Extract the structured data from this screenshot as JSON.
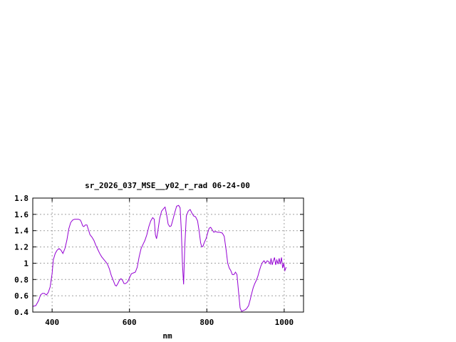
{
  "chart_data": {
    "type": "line",
    "title": "sr_2026_037_MSE__y02_r_rad 06-24-00",
    "xlabel": "nm",
    "ylabel": "",
    "xlim": [
      350,
      1050
    ],
    "ylim": [
      0.4,
      1.8
    ],
    "xticks": [
      400,
      600,
      800,
      1000
    ],
    "yticks": [
      0.4,
      0.6,
      0.8,
      1,
      1.2,
      1.4,
      1.6,
      1.8
    ],
    "xtick_labels": [
      "400",
      "600",
      "800",
      "1000"
    ],
    "ytick_labels": [
      "0.4",
      "0.6",
      "0.8",
      "1",
      "1.2",
      "1.4",
      "1.6",
      "1.8"
    ],
    "grid": true,
    "legend": "none",
    "series_color": "#9400d3",
    "series": [
      {
        "points": [
          [
            350,
            0.47
          ],
          [
            358,
            0.48
          ],
          [
            365,
            0.54
          ],
          [
            370,
            0.61
          ],
          [
            375,
            0.63
          ],
          [
            380,
            0.63
          ],
          [
            385,
            0.61
          ],
          [
            390,
            0.64
          ],
          [
            395,
            0.71
          ],
          [
            400,
            0.87
          ],
          [
            403,
            1.04
          ],
          [
            408,
            1.12
          ],
          [
            413,
            1.16
          ],
          [
            418,
            1.18
          ],
          [
            423,
            1.16
          ],
          [
            428,
            1.12
          ],
          [
            433,
            1.18
          ],
          [
            438,
            1.28
          ],
          [
            443,
            1.42
          ],
          [
            448,
            1.5
          ],
          [
            453,
            1.53
          ],
          [
            458,
            1.54
          ],
          [
            463,
            1.54
          ],
          [
            468,
            1.54
          ],
          [
            473,
            1.53
          ],
          [
            476,
            1.5
          ],
          [
            479,
            1.46
          ],
          [
            482,
            1.45
          ],
          [
            486,
            1.47
          ],
          [
            490,
            1.47
          ],
          [
            494,
            1.41
          ],
          [
            498,
            1.35
          ],
          [
            503,
            1.32
          ],
          [
            508,
            1.28
          ],
          [
            513,
            1.22
          ],
          [
            518,
            1.17
          ],
          [
            523,
            1.12
          ],
          [
            528,
            1.08
          ],
          [
            533,
            1.05
          ],
          [
            538,
            1.02
          ],
          [
            543,
            0.99
          ],
          [
            548,
            0.93
          ],
          [
            553,
            0.85
          ],
          [
            558,
            0.79
          ],
          [
            563,
            0.73
          ],
          [
            566,
            0.72
          ],
          [
            570,
            0.75
          ],
          [
            574,
            0.79
          ],
          [
            578,
            0.81
          ],
          [
            582,
            0.79
          ],
          [
            586,
            0.75
          ],
          [
            590,
            0.75
          ],
          [
            595,
            0.77
          ],
          [
            600,
            0.82
          ],
          [
            605,
            0.87
          ],
          [
            610,
            0.88
          ],
          [
            615,
            0.89
          ],
          [
            620,
            0.95
          ],
          [
            625,
            1.08
          ],
          [
            630,
            1.18
          ],
          [
            635,
            1.23
          ],
          [
            640,
            1.28
          ],
          [
            645,
            1.35
          ],
          [
            650,
            1.45
          ],
          [
            655,
            1.52
          ],
          [
            660,
            1.56
          ],
          [
            664,
            1.54
          ],
          [
            667,
            1.35
          ],
          [
            670,
            1.3
          ],
          [
            673,
            1.38
          ],
          [
            678,
            1.55
          ],
          [
            683,
            1.64
          ],
          [
            688,
            1.67
          ],
          [
            692,
            1.69
          ],
          [
            696,
            1.6
          ],
          [
            700,
            1.48
          ],
          [
            704,
            1.45
          ],
          [
            708,
            1.46
          ],
          [
            712,
            1.53
          ],
          [
            717,
            1.62
          ],
          [
            722,
            1.7
          ],
          [
            727,
            1.71
          ],
          [
            731,
            1.68
          ],
          [
            734,
            1.4
          ],
          [
            737,
            0.98
          ],
          [
            740,
            0.74
          ],
          [
            743,
            1.2
          ],
          [
            747,
            1.58
          ],
          [
            752,
            1.64
          ],
          [
            757,
            1.66
          ],
          [
            761,
            1.62
          ],
          [
            766,
            1.58
          ],
          [
            771,
            1.57
          ],
          [
            776,
            1.52
          ],
          [
            780,
            1.4
          ],
          [
            784,
            1.25
          ],
          [
            787,
            1.2
          ],
          [
            790,
            1.21
          ],
          [
            794,
            1.26
          ],
          [
            798,
            1.3
          ],
          [
            802,
            1.37
          ],
          [
            806,
            1.43
          ],
          [
            810,
            1.44
          ],
          [
            814,
            1.41
          ],
          [
            818,
            1.38
          ],
          [
            822,
            1.39
          ],
          [
            828,
            1.38
          ],
          [
            834,
            1.38
          ],
          [
            840,
            1.37
          ],
          [
            845,
            1.33
          ],
          [
            850,
            1.16
          ],
          [
            854,
            1.0
          ],
          [
            858,
            0.94
          ],
          [
            862,
            0.91
          ],
          [
            866,
            0.86
          ],
          [
            870,
            0.86
          ],
          [
            874,
            0.89
          ],
          [
            878,
            0.86
          ],
          [
            882,
            0.65
          ],
          [
            886,
            0.45
          ],
          [
            890,
            0.41
          ],
          [
            895,
            0.42
          ],
          [
            900,
            0.43
          ],
          [
            904,
            0.45
          ],
          [
            908,
            0.48
          ],
          [
            912,
            0.55
          ],
          [
            916,
            0.63
          ],
          [
            920,
            0.7
          ],
          [
            924,
            0.75
          ],
          [
            928,
            0.79
          ],
          [
            932,
            0.84
          ],
          [
            936,
            0.91
          ],
          [
            940,
            0.97
          ],
          [
            944,
            1.01
          ],
          [
            948,
            1.03
          ],
          [
            952,
            1.0
          ],
          [
            956,
            1.03
          ],
          [
            960,
            1.02
          ],
          [
            964,
            0.99
          ],
          [
            966,
            1.06
          ],
          [
            969,
            0.98
          ],
          [
            972,
            1.03
          ],
          [
            975,
            1.07
          ],
          [
            978,
            0.98
          ],
          [
            981,
            1.04
          ],
          [
            984,
            0.99
          ],
          [
            987,
            1.06
          ],
          [
            990,
            0.99
          ],
          [
            993,
            1.07
          ],
          [
            996,
            0.94
          ],
          [
            999,
            1.0
          ],
          [
            1002,
            0.91
          ],
          [
            1005,
            0.95
          ]
        ]
      }
    ]
  }
}
